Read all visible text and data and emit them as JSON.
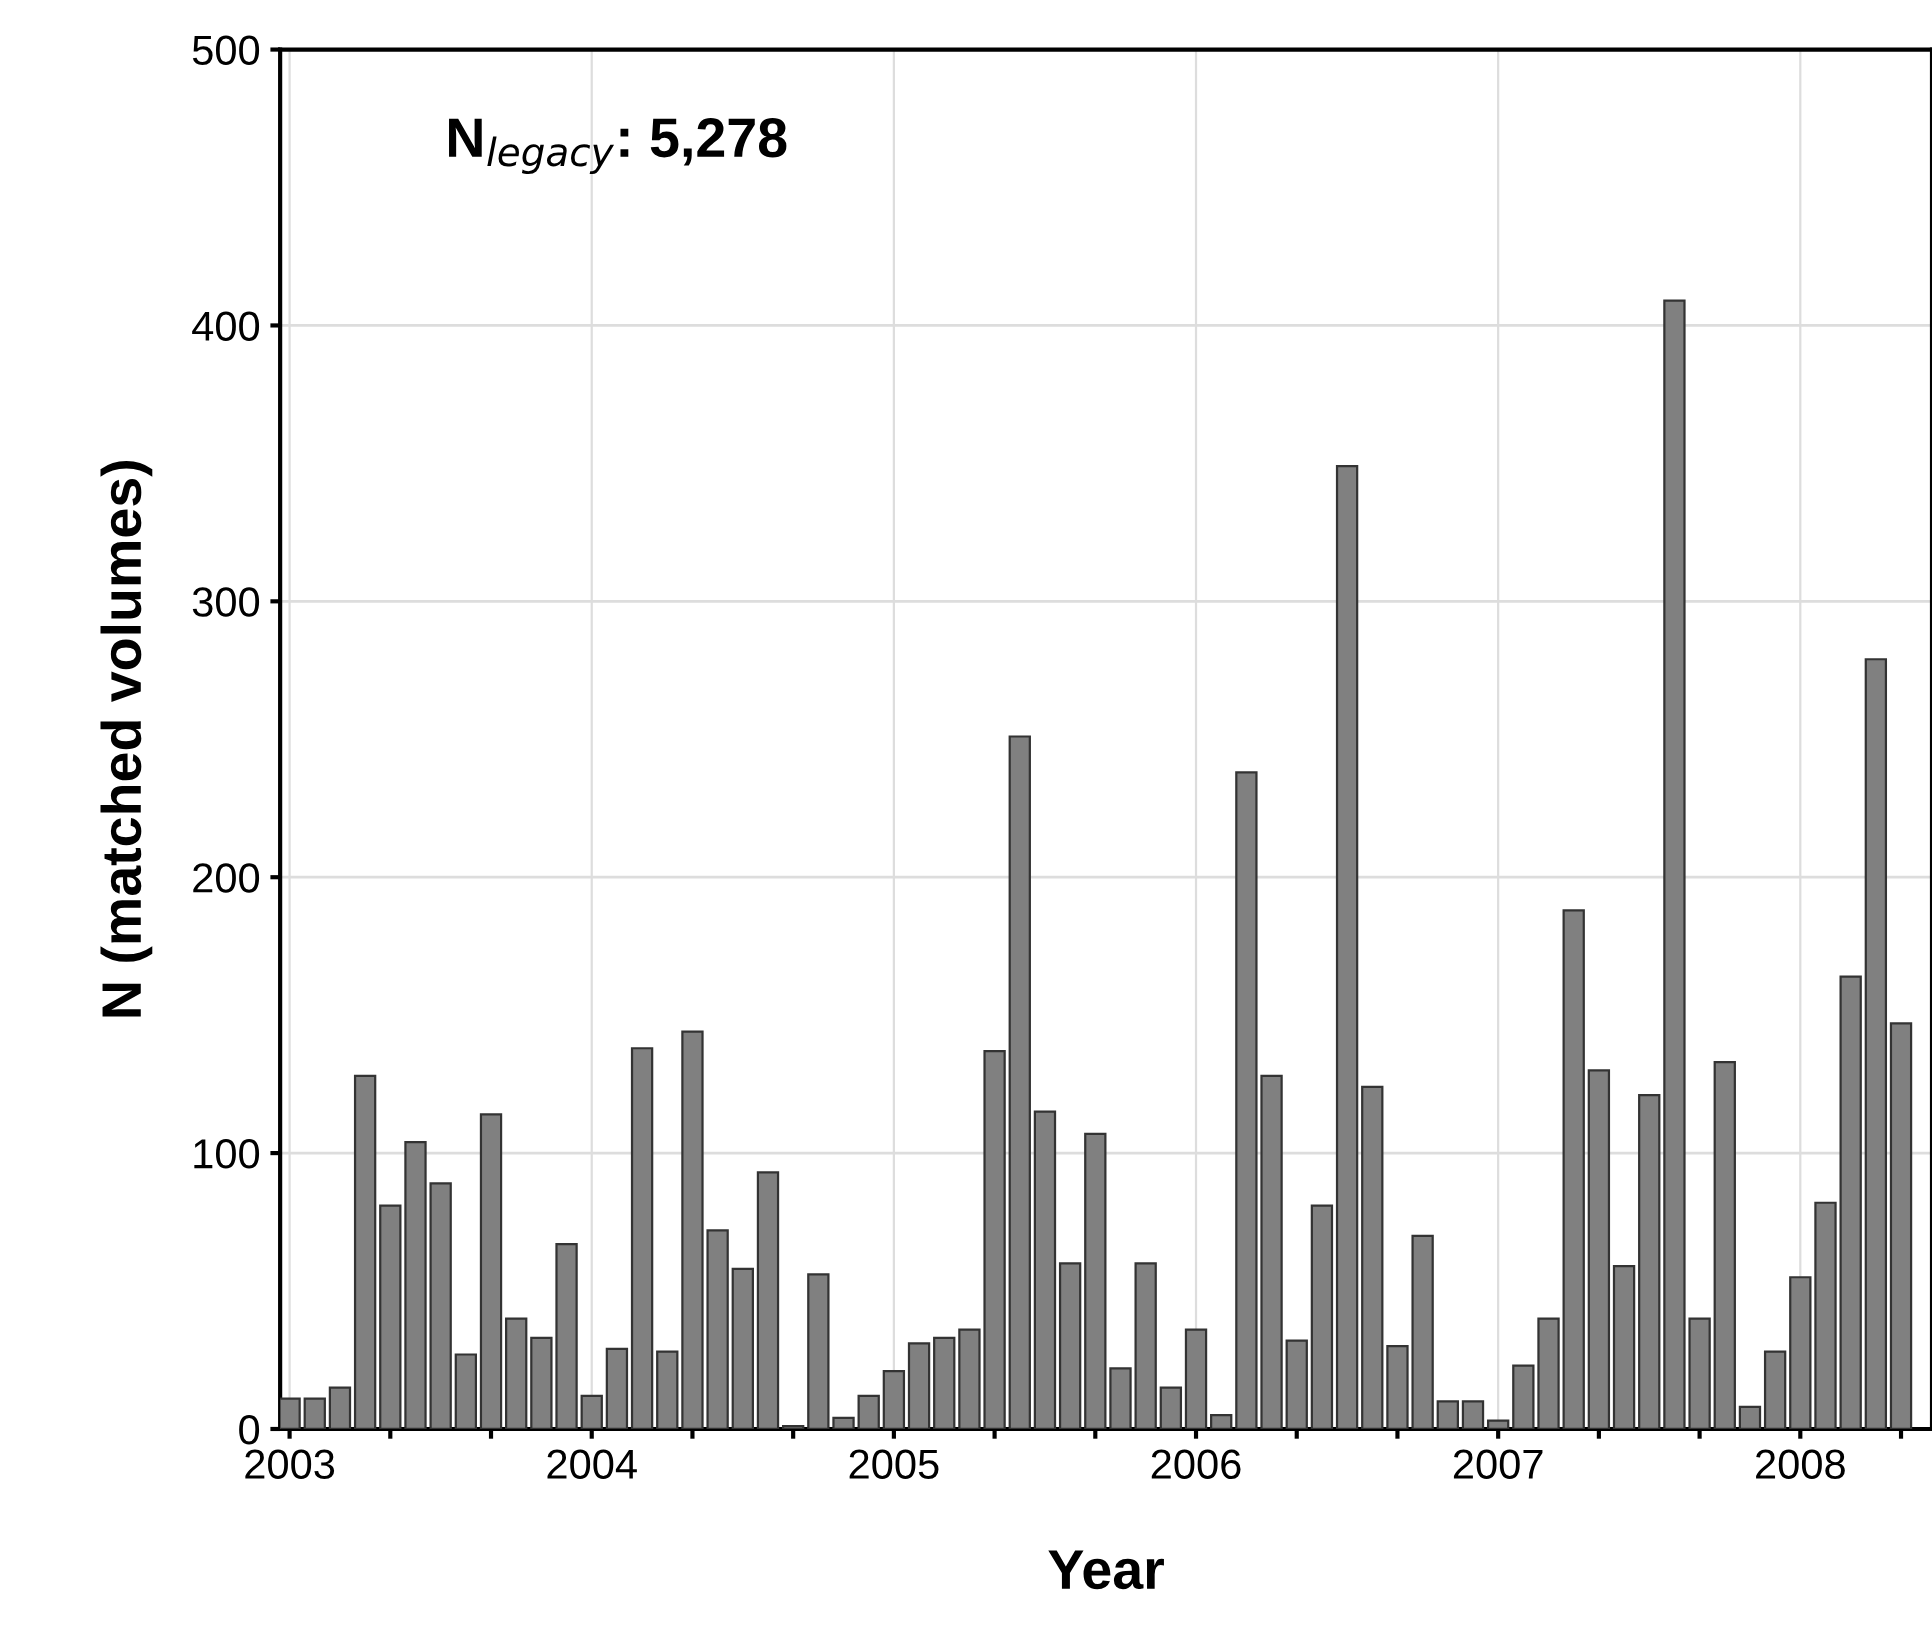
{
  "chart_data": {
    "type": "bar",
    "xlabel": "Year",
    "ylabel": "N (matched volumes)",
    "annotations": [
      "N$_{legacy}$: 5,278"
    ],
    "x": [
      "2003-01",
      "2003-02",
      "2003-03",
      "2003-04",
      "2003-05",
      "2003-06",
      "2003-07",
      "2003-08",
      "2003-09",
      "2003-10",
      "2003-11",
      "2003-12",
      "2004-01",
      "2004-02",
      "2004-03",
      "2004-04",
      "2004-05",
      "2004-06",
      "2004-07",
      "2004-08",
      "2004-09",
      "2004-10",
      "2004-11",
      "2004-12",
      "2005-01",
      "2005-02",
      "2005-03",
      "2005-04",
      "2005-05",
      "2005-06",
      "2005-07",
      "2005-08",
      "2005-09",
      "2005-10",
      "2005-11",
      "2005-12",
      "2006-01",
      "2006-02",
      "2006-03",
      "2006-04",
      "2006-05",
      "2006-06",
      "2006-07",
      "2006-08",
      "2006-09",
      "2006-10",
      "2006-11",
      "2006-12",
      "2007-01",
      "2007-02",
      "2007-03",
      "2007-04",
      "2007-05",
      "2007-06",
      "2007-07",
      "2007-08",
      "2007-09",
      "2007-10",
      "2007-11",
      "2007-12",
      "2008-01",
      "2008-02",
      "2008-03",
      "2008-04",
      "2008-05"
    ],
    "values": [
      11,
      11,
      15,
      128,
      81,
      104,
      89,
      27,
      114,
      40,
      33,
      67,
      12,
      29,
      138,
      28,
      144,
      72,
      58,
      93,
      1,
      56,
      4,
      12,
      21,
      31,
      33,
      36,
      137,
      251,
      115,
      60,
      107,
      22,
      60,
      15,
      36,
      5,
      238,
      128,
      32,
      81,
      349,
      124,
      30,
      70,
      10,
      10,
      3,
      23,
      40,
      188,
      130,
      59,
      121,
      409,
      40,
      133,
      8,
      28,
      55,
      82,
      164,
      279,
      147
    ],
    "color": "#808080",
    "xlim": [
      "2002-12-20",
      "2008-06-08"
    ],
    "xticks": [
      {
        "value": "2003",
        "label": "2003"
      },
      {
        "value": "2003-05",
        "label": null
      },
      {
        "value": "2003-09",
        "label": null
      },
      {
        "value": "2004",
        "label": "2004"
      },
      {
        "value": "2004-05",
        "label": null
      },
      {
        "value": "2004-09",
        "label": null
      },
      {
        "value": "2005",
        "label": "2005"
      },
      {
        "value": "2005-05",
        "label": null
      },
      {
        "value": "2005-09",
        "label": null
      },
      {
        "value": "2006",
        "label": "2006"
      },
      {
        "value": "2006-05",
        "label": null
      },
      {
        "value": "2006-09",
        "label": null
      },
      {
        "value": "2007",
        "label": "2007"
      },
      {
        "value": "2007-05",
        "label": null
      },
      {
        "value": "2007-09",
        "label": null
      },
      {
        "value": "2008",
        "label": "2008"
      },
      {
        "value": "2008-05",
        "label": null
      }
    ],
    "ylim": [
      0,
      500
    ],
    "yticks": [
      0,
      100,
      200,
      300,
      400,
      500
    ],
    "grid": true
  }
}
